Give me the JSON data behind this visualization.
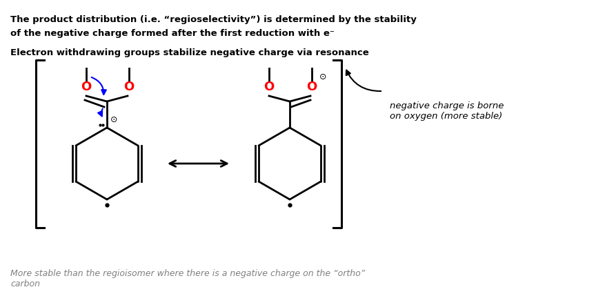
{
  "title1": "The product distribution (i.e. “regioselectivity”) is determined by the stability",
  "title2": "of the negative charge formed after the first reduction with e⁻",
  "title3": "Electron withdrawing groups stabilize negative charge via resonance",
  "footnote": "More stable than the regioisomer where there is a negative charge on the “ortho”\ncarbon",
  "annotation": "negative charge is borne\non oxygen (more stable)",
  "bg_color": "#ffffff",
  "text_color": "#000000",
  "red_color": "#ff0000",
  "blue_color": "#0000ff",
  "gray_color": "#808080"
}
